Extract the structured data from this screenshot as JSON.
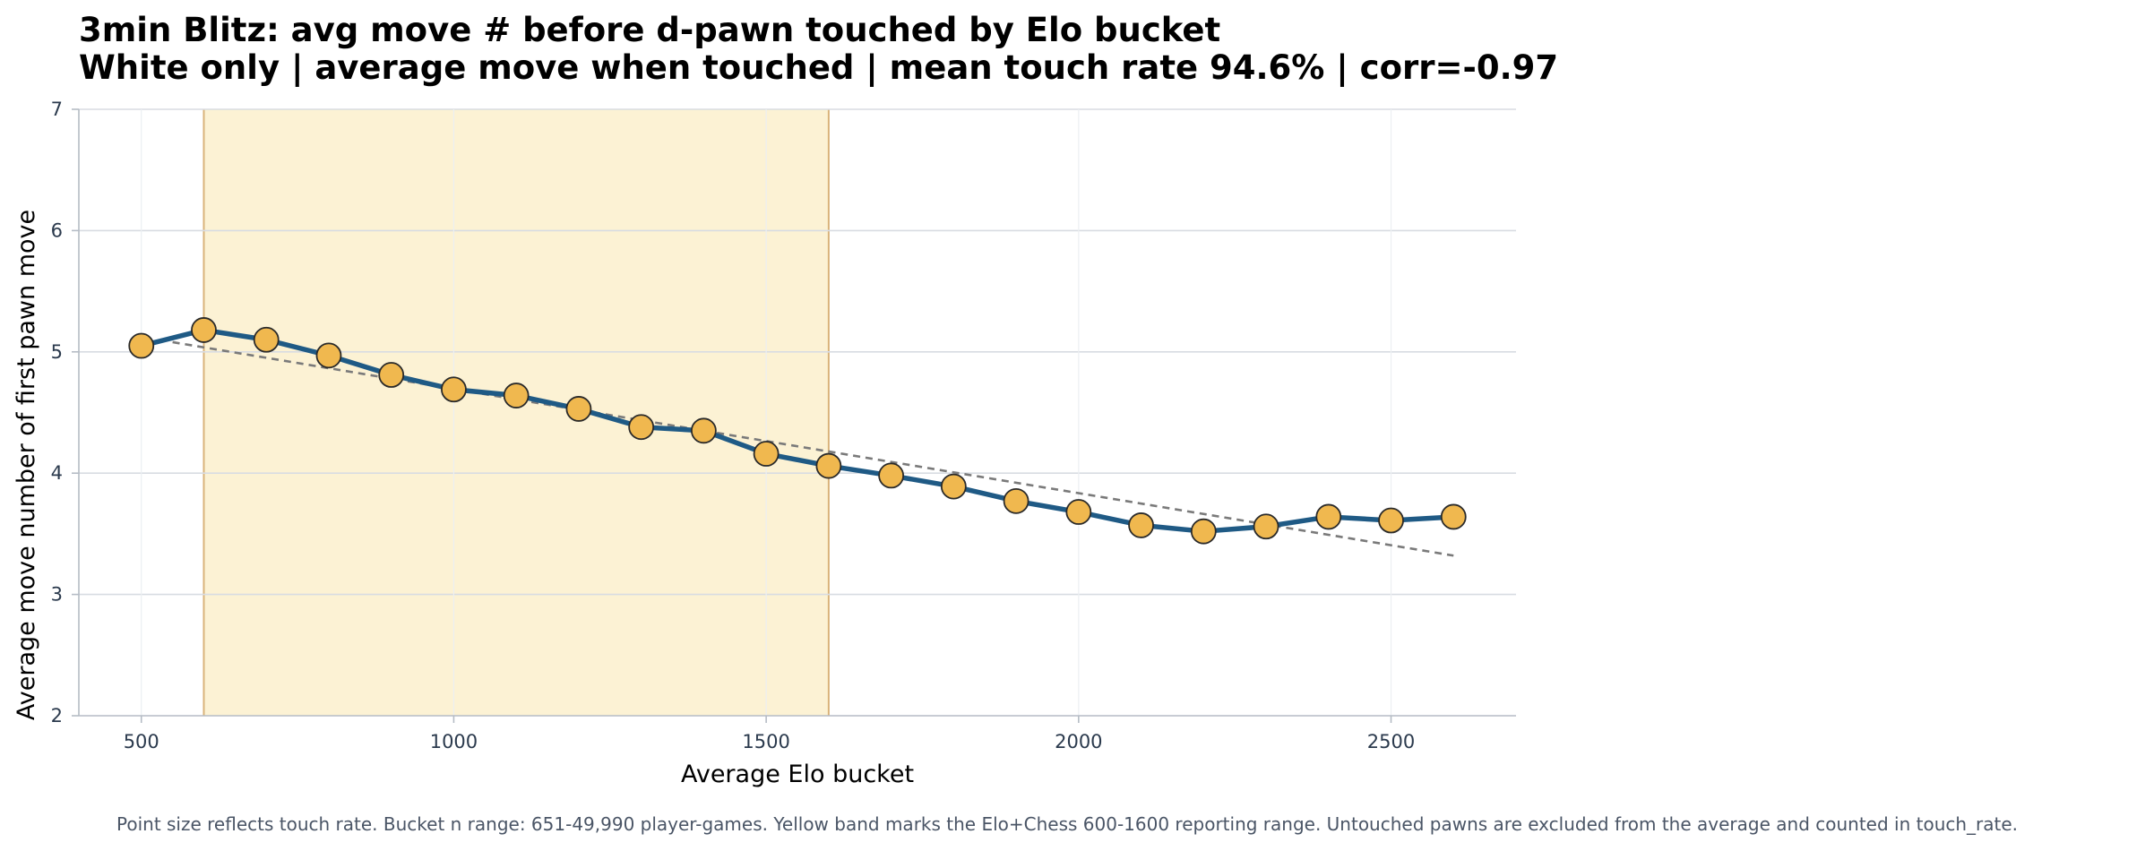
{
  "chart_data": {
    "type": "line",
    "title": "3min Blitz: avg move # before d-pawn touched by Elo bucket",
    "subtitle": "White only | average move when touched | mean touch rate 94.6% | corr=-0.97",
    "xlabel": "Average Elo bucket",
    "ylabel": "Average move number of first pawn move",
    "xlim": [
      400,
      2700
    ],
    "ylim": [
      2,
      7
    ],
    "xticks": [
      500,
      1000,
      1500,
      2000,
      2500
    ],
    "yticks": [
      2,
      3,
      4,
      5,
      6,
      7
    ],
    "grid": true,
    "highlight_band": [
      600,
      1600
    ],
    "series": [
      {
        "x": [
          500,
          600,
          700,
          800,
          900,
          1000,
          1100,
          1200,
          1300,
          1400,
          1500,
          1600,
          1700,
          1800,
          1900,
          2000,
          2100,
          2200,
          2300,
          2400,
          2500,
          2600
        ],
        "values": [
          5.05,
          5.18,
          5.1,
          4.97,
          4.81,
          4.69,
          4.64,
          4.53,
          4.38,
          4.35,
          4.16,
          4.06,
          3.98,
          3.89,
          3.77,
          3.68,
          3.57,
          3.52,
          3.56,
          3.64,
          3.61,
          3.64
        ]
      }
    ],
    "trend_line": {
      "x": [
        550,
        2600
      ],
      "y": [
        5.08,
        3.32
      ]
    },
    "caption": "Point size reflects touch rate. Bucket n range: 651-49,990 player-games. Yellow band marks the Elo+Chess 600-1600 reporting range. Untouched pawns are excluded from the average and counted in touch_rate."
  },
  "colors": {
    "line": "#1f5a85",
    "marker_fill": "#f0b84f",
    "marker_edge": "#2a2a2a",
    "band_fill": "#fcf2d4",
    "band_edge": "#d9b37a",
    "trend": "#7a7a7a",
    "grid": "#d8dce2",
    "axis": "#b5bcc5"
  }
}
